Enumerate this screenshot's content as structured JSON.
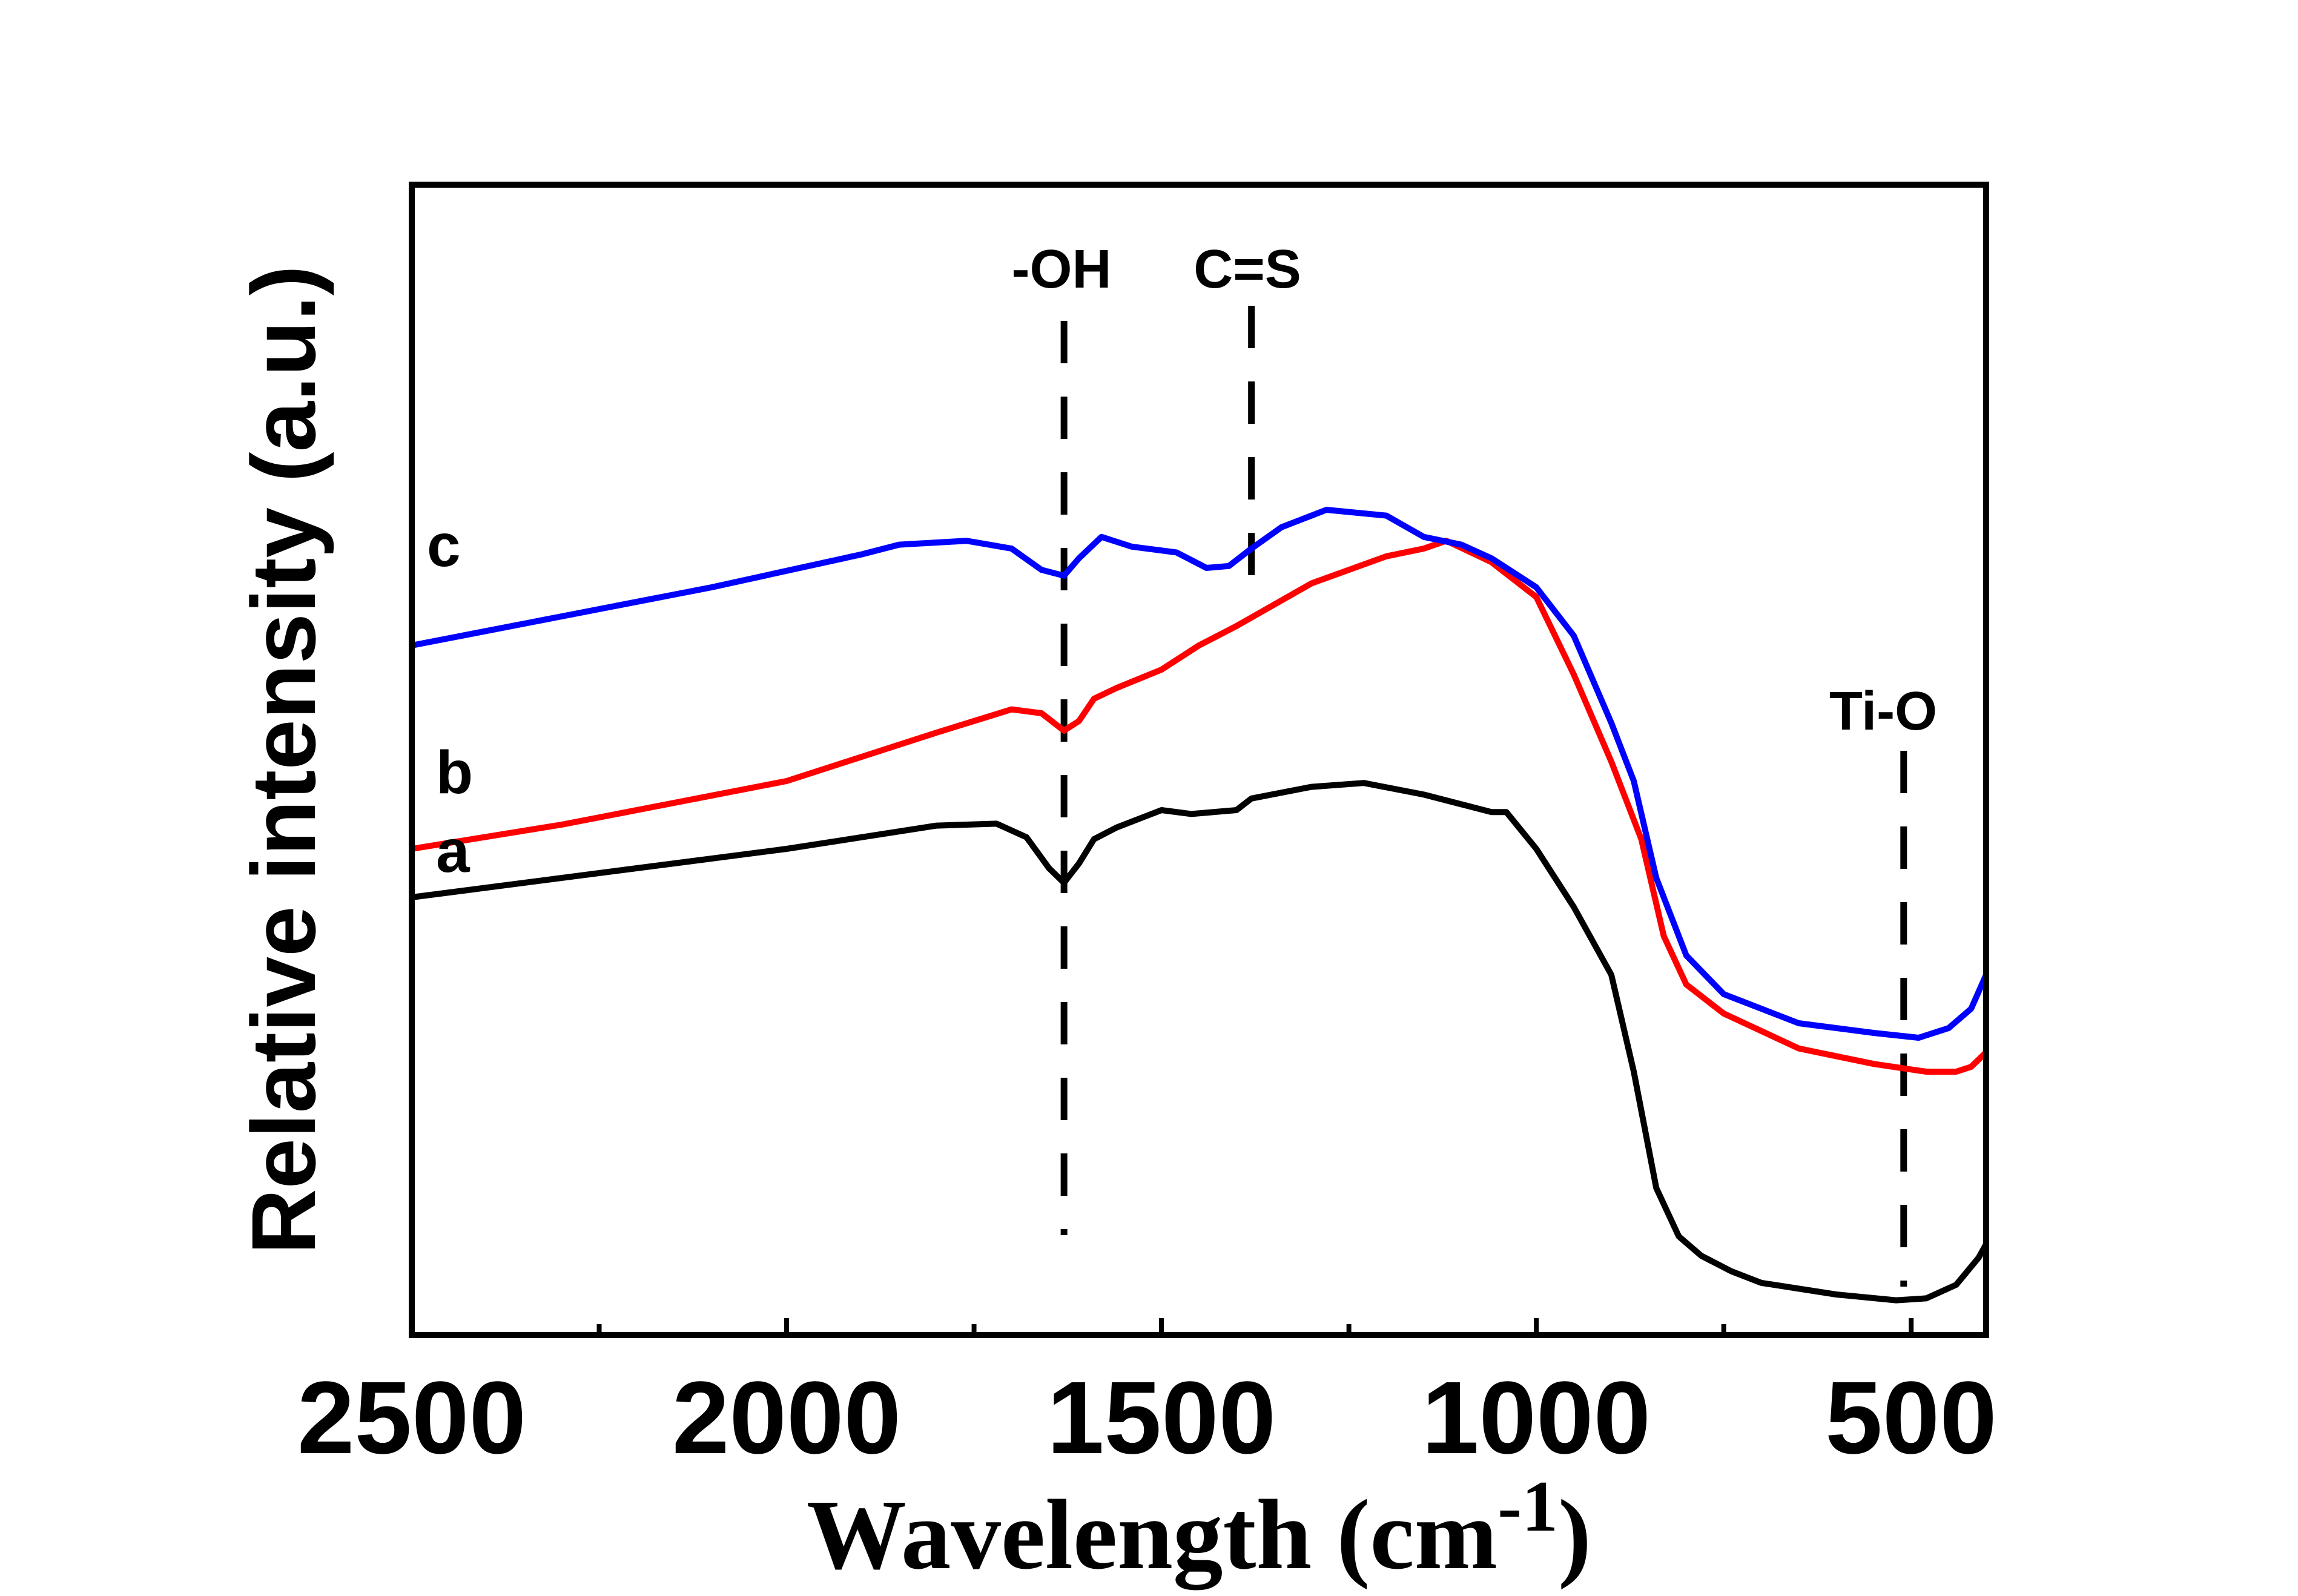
{
  "chart_data": {
    "type": "line",
    "xlabel": "Wavelength (cm",
    "xlabel_sup": "-1",
    "xlabel_close": ")",
    "ylabel": "Relative intensity (a.u.)",
    "xlim": [
      2500,
      400
    ],
    "x_reversed": true,
    "ylim": [
      0,
      1
    ],
    "x_ticks": [
      2500,
      2000,
      1500,
      1000,
      500
    ],
    "y_ticks_shown": false,
    "grid": false,
    "series": [
      {
        "name": "a",
        "color": "#000000",
        "x": [
          2500,
          2200,
          2000,
          1800,
          1720,
          1680,
          1650,
          1630,
          1610,
          1590,
          1560,
          1500,
          1460,
          1400,
          1380,
          1300,
          1230,
          1150,
          1100,
          1060,
          1040,
          1000,
          950,
          900,
          870,
          840,
          810,
          780,
          740,
          700,
          600,
          520,
          480,
          440,
          410,
          400
        ],
        "y": [
          0.38,
          0.41,
          0.43,
          0.454,
          0.456,
          0.442,
          0.41,
          0.395,
          0.415,
          0.44,
          0.452,
          0.47,
          0.466,
          0.47,
          0.482,
          0.494,
          0.498,
          0.486,
          0.476,
          0.468,
          0.468,
          0.43,
          0.37,
          0.3,
          0.2,
          0.08,
          0.03,
          0.01,
          -0.006,
          -0.018,
          -0.03,
          -0.036,
          -0.034,
          -0.02,
          0.008,
          0.022
        ]
      },
      {
        "name": "b",
        "color": "#ff0000",
        "x": [
          2500,
          2300,
          2000,
          1800,
          1700,
          1660,
          1630,
          1610,
          1590,
          1560,
          1500,
          1450,
          1400,
          1300,
          1200,
          1150,
          1120,
          1060,
          1000,
          950,
          900,
          860,
          830,
          800,
          750,
          650,
          550,
          480,
          440,
          420,
          400
        ],
        "y": [
          0.43,
          0.455,
          0.5,
          0.55,
          0.574,
          0.57,
          0.552,
          0.562,
          0.585,
          0.596,
          0.615,
          0.64,
          0.66,
          0.704,
          0.732,
          0.74,
          0.748,
          0.726,
          0.69,
          0.61,
          0.52,
          0.44,
          0.34,
          0.29,
          0.26,
          0.224,
          0.208,
          0.2,
          0.2,
          0.205,
          0.22
        ]
      },
      {
        "name": "c",
        "color": "#0000ff",
        "x": [
          2500,
          2300,
          2100,
          1900,
          1850,
          1760,
          1700,
          1660,
          1630,
          1610,
          1580,
          1540,
          1480,
          1440,
          1410,
          1380,
          1340,
          1280,
          1200,
          1150,
          1100,
          1060,
          1000,
          950,
          900,
          870,
          840,
          800,
          750,
          650,
          550,
          490,
          450,
          420,
          400
        ],
        "y": [
          0.64,
          0.67,
          0.7,
          0.734,
          0.744,
          0.748,
          0.74,
          0.718,
          0.712,
          0.73,
          0.752,
          0.742,
          0.736,
          0.72,
          0.722,
          0.74,
          0.762,
          0.78,
          0.774,
          0.752,
          0.744,
          0.73,
          0.7,
          0.65,
          0.56,
          0.5,
          0.4,
          0.32,
          0.28,
          0.25,
          0.24,
          0.235,
          0.245,
          0.265,
          0.3
        ]
      }
    ],
    "annotations": [
      {
        "label": "-OH",
        "x": 1630
      },
      {
        "label": "C=S",
        "x": 1380
      },
      {
        "label": "Ti-O",
        "x": 510
      }
    ]
  }
}
